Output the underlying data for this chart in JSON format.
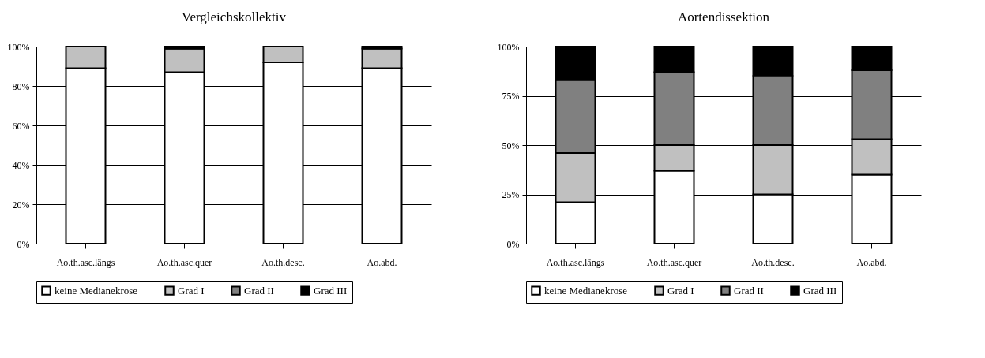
{
  "chart_data": [
    {
      "type": "bar",
      "title": "Vergleichskollektiv",
      "stacked": true,
      "categories": [
        "Ao.th.asc.längs",
        "Ao.th.asc.quer",
        "Ao.th.desc.",
        "Ao.abd."
      ],
      "series": [
        {
          "name": "keine Medianekrose",
          "color": "#ffffff",
          "values": [
            89,
            87,
            92,
            89
          ]
        },
        {
          "name": "Grad I",
          "color": "#c0c0c0",
          "values": [
            11,
            12,
            8,
            10
          ]
        },
        {
          "name": "Grad II",
          "color": "#808080",
          "values": [
            0,
            0,
            0,
            0
          ]
        },
        {
          "name": "Grad III",
          "color": "#000000",
          "values": [
            0,
            1,
            0,
            1
          ]
        }
      ],
      "ylim": [
        0,
        100
      ],
      "yticks": [
        {
          "value": 0,
          "label": "0%"
        },
        {
          "value": 20,
          "label": "20%"
        },
        {
          "value": 40,
          "label": "40%"
        },
        {
          "value": 60,
          "label": "60%"
        },
        {
          "value": 80,
          "label": "80%"
        },
        {
          "value": 100,
          "label": "100%"
        }
      ],
      "grid": "y",
      "legend": "bottom"
    },
    {
      "type": "bar",
      "title": "Aortendissektion",
      "stacked": true,
      "categories": [
        "Ao.th.asc.längs",
        "Ao.th.asc.quer",
        "Ao.th.desc.",
        "Ao.abd."
      ],
      "series": [
        {
          "name": "keine Medianekrose",
          "color": "#ffffff",
          "values": [
            21,
            37,
            25,
            35
          ]
        },
        {
          "name": "Grad I",
          "color": "#c0c0c0",
          "values": [
            25,
            13,
            25,
            18
          ]
        },
        {
          "name": "Grad II",
          "color": "#808080",
          "values": [
            37,
            37,
            35,
            35
          ]
        },
        {
          "name": "Grad III",
          "color": "#000000",
          "values": [
            17,
            13,
            15,
            12
          ]
        }
      ],
      "ylim": [
        0,
        100
      ],
      "yticks": [
        {
          "value": 0,
          "label": "0%"
        },
        {
          "value": 25,
          "label": "25%"
        },
        {
          "value": 50,
          "label": "50%"
        },
        {
          "value": 75,
          "label": "75%"
        },
        {
          "value": 100,
          "label": "100%"
        }
      ],
      "grid": "y",
      "legend": "bottom"
    }
  ]
}
